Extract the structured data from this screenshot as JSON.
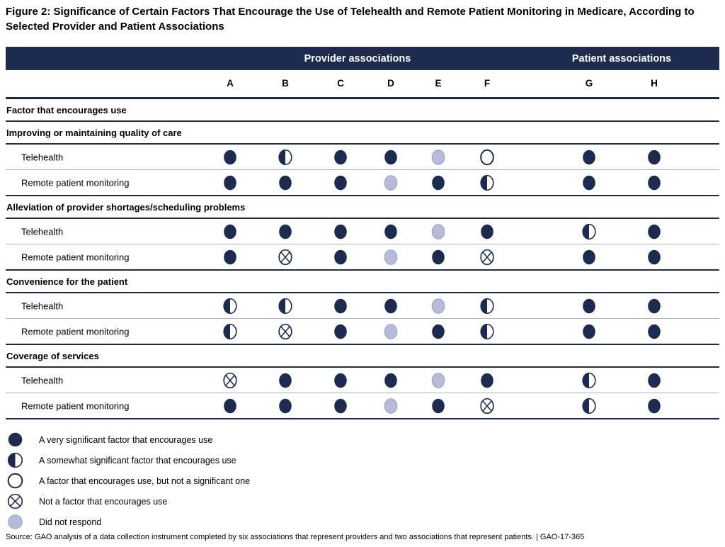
{
  "chart_data": {
    "type": "table",
    "title": "Figure 2: Significance of Certain Factors That Encourage the Use of Telehealth and Remote Patient Monitoring in Medicare, According to Selected Provider and Patient Associations",
    "groups": [
      {
        "label": "Provider associations",
        "columns": [
          "A",
          "B",
          "C",
          "D",
          "E",
          "F"
        ]
      },
      {
        "label": "Patient associations",
        "columns": [
          "G",
          "H"
        ]
      }
    ],
    "columns": [
      "A",
      "B",
      "C",
      "D",
      "E",
      "F",
      "G",
      "H"
    ],
    "row_header": "Factor that encourages use",
    "sections": [
      {
        "label": "Improving or maintaining quality of care",
        "rows": [
          {
            "label": "Telehealth",
            "values": [
              "very-significant",
              "somewhat-significant",
              "very-significant",
              "very-significant",
              "did-not-respond",
              "not-significant",
              "very-significant",
              "very-significant"
            ]
          },
          {
            "label": "Remote patient monitoring",
            "values": [
              "very-significant",
              "very-significant",
              "very-significant",
              "did-not-respond",
              "very-significant",
              "somewhat-significant",
              "very-significant",
              "very-significant"
            ]
          }
        ]
      },
      {
        "label": "Alleviation of provider shortages/scheduling problems",
        "rows": [
          {
            "label": "Telehealth",
            "values": [
              "very-significant",
              "very-significant",
              "very-significant",
              "very-significant",
              "did-not-respond",
              "very-significant",
              "somewhat-significant",
              "very-significant"
            ]
          },
          {
            "label": "Remote patient monitoring",
            "values": [
              "very-significant",
              "not-a-factor",
              "very-significant",
              "did-not-respond",
              "very-significant",
              "not-a-factor",
              "very-significant",
              "very-significant"
            ]
          }
        ]
      },
      {
        "label": "Convenience for the patient",
        "rows": [
          {
            "label": "Telehealth",
            "values": [
              "somewhat-significant",
              "somewhat-significant",
              "very-significant",
              "very-significant",
              "did-not-respond",
              "somewhat-significant",
              "very-significant",
              "very-significant"
            ]
          },
          {
            "label": "Remote patient monitoring",
            "values": [
              "somewhat-significant",
              "not-a-factor",
              "very-significant",
              "did-not-respond",
              "very-significant",
              "somewhat-significant",
              "very-significant",
              "very-significant"
            ]
          }
        ]
      },
      {
        "label": "Coverage of services",
        "rows": [
          {
            "label": "Telehealth",
            "values": [
              "not-a-factor",
              "very-significant",
              "very-significant",
              "very-significant",
              "did-not-respond",
              "very-significant",
              "somewhat-significant",
              "very-significant"
            ]
          },
          {
            "label": "Remote patient monitoring",
            "values": [
              "very-significant",
              "very-significant",
              "very-significant",
              "did-not-respond",
              "very-significant",
              "not-a-factor",
              "somewhat-significant",
              "very-significant"
            ]
          }
        ]
      }
    ],
    "legend": [
      {
        "symbol": "very-significant",
        "label": "A very significant factor that encourages use"
      },
      {
        "symbol": "somewhat-significant",
        "label": "A somewhat significant factor that encourages use"
      },
      {
        "symbol": "not-significant",
        "label": "A factor that encourages use, but not a significant one"
      },
      {
        "symbol": "not-a-factor",
        "label": "Not a factor that encourages use"
      },
      {
        "symbol": "did-not-respond",
        "label": "Did not respond"
      }
    ],
    "source": "Source: GAO analysis of a data collection instrument completed by six associations that represent providers and two associations that represent patients.  |  GAO-17-365",
    "colors": {
      "navy": "#1c2b4e",
      "did_not_respond_fill": "#b5bbd8",
      "did_not_respond_stroke": "#97a0c4",
      "row_divider": "#a7b0c6"
    }
  }
}
